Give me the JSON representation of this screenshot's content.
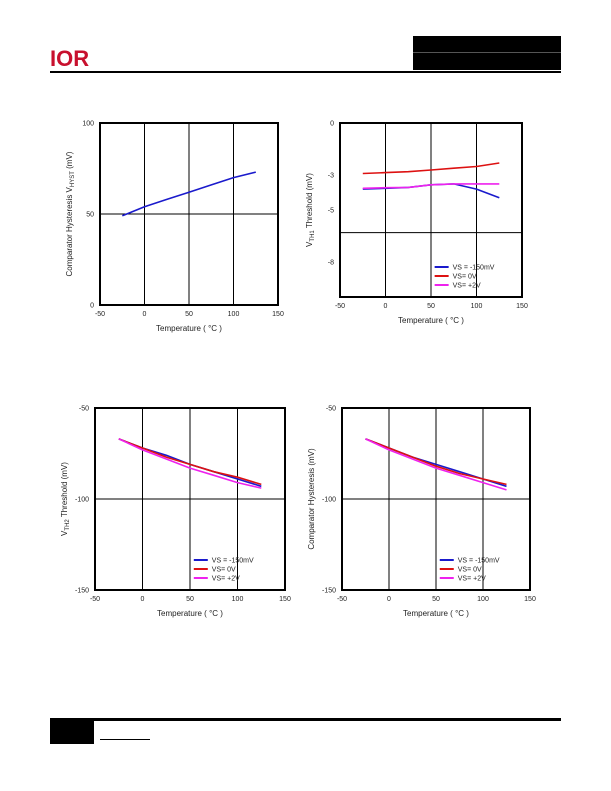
{
  "brand": {
    "logo_text": "IOR",
    "logo_color": "#c8102e"
  },
  "chart_data": [
    {
      "type": "line",
      "xlabel": "Temperature ( °C )",
      "ylabel": "Comparator Hysteresis V",
      "ylabel_sub": "HYST",
      "ylabel_unit": " (mV)",
      "xlim": [
        -50,
        150
      ],
      "ylim": [
        0,
        100
      ],
      "xticks": [
        -50,
        0,
        50,
        100,
        150
      ],
      "yticks": [
        0,
        50,
        100
      ],
      "xgrid": [
        0,
        50,
        100
      ],
      "ygrid": [
        50
      ],
      "legend": null,
      "series": [
        {
          "color": "#1a1acc",
          "x": [
            -25,
            0,
            25,
            50,
            75,
            100,
            125
          ],
          "y": [
            49,
            54,
            58,
            62,
            66,
            70,
            73
          ]
        }
      ]
    },
    {
      "type": "line",
      "xlabel": "Temperature ( °C )",
      "ylabel": "V",
      "ylabel_sub": "TH1",
      "ylabel_unit": " Threshold (mV)",
      "xlim": [
        -50,
        150
      ],
      "ylim": [
        -10,
        0
      ],
      "xticks": [
        -50,
        0,
        50,
        100,
        150
      ],
      "yticks": [
        0,
        -3,
        -5,
        -8
      ],
      "ytick_labels": [
        "0",
        "-3",
        "-5",
        "-8"
      ],
      "xgrid": [
        0,
        50,
        100
      ],
      "ygrid": [
        -6.3
      ],
      "legend": "bottom-right",
      "series": [
        {
          "name": "VS = -150mV",
          "color": "#1a1acc",
          "x": [
            -25,
            0,
            25,
            50,
            75,
            100,
            125
          ],
          "y": [
            -3.8,
            -3.75,
            -3.7,
            -3.55,
            -3.5,
            -3.8,
            -4.3
          ]
        },
        {
          "name": "VS= 0V",
          "color": "#dd1111",
          "x": [
            -25,
            0,
            25,
            50,
            75,
            100,
            125
          ],
          "y": [
            -2.9,
            -2.85,
            -2.8,
            -2.7,
            -2.6,
            -2.5,
            -2.3
          ]
        },
        {
          "name": "VS= +2V",
          "color": "#ee22ee",
          "x": [
            -25,
            0,
            25,
            50,
            75,
            100,
            125
          ],
          "y": [
            -3.75,
            -3.72,
            -3.7,
            -3.55,
            -3.5,
            -3.5,
            -3.5
          ]
        }
      ]
    },
    {
      "type": "line",
      "xlabel": "Temperature ( °C )",
      "ylabel": "V",
      "ylabel_sub": "TH2",
      "ylabel_unit": " Threshold (mV)",
      "xlim": [
        -50,
        150
      ],
      "ylim": [
        -150,
        -50
      ],
      "xticks": [
        -50,
        0,
        50,
        100,
        150
      ],
      "xtick_labels": [
        "-50",
        "0",
        "50",
        "100",
        "150"
      ],
      "yticks": [
        -50,
        -100,
        -150
      ],
      "xgrid": [
        0,
        50,
        100
      ],
      "ygrid": [
        -100
      ],
      "legend": "bottom-right",
      "series": [
        {
          "name": "VS = -150mV",
          "color": "#1a1acc",
          "x": [
            -25,
            0,
            25,
            50,
            75,
            100,
            125
          ],
          "y": [
            -67,
            -72,
            -76,
            -81,
            -85,
            -89,
            -93
          ]
        },
        {
          "name": "VS= 0V",
          "color": "#dd1111",
          "x": [
            -25,
            0,
            25,
            50,
            75,
            100,
            125
          ],
          "y": [
            -67,
            -72,
            -77,
            -81,
            -85,
            -88,
            -92
          ]
        },
        {
          "name": "VS= +2V",
          "color": "#ee22ee",
          "x": [
            -25,
            0,
            25,
            50,
            75,
            100,
            125
          ],
          "y": [
            -67,
            -73,
            -78,
            -83,
            -87,
            -91,
            -94
          ]
        }
      ]
    },
    {
      "type": "line",
      "xlabel": "Temperature ( °C )",
      "ylabel": "Comparator Hysteresis (mV)",
      "ylabel_sub": "",
      "ylabel_unit": "",
      "xlim": [
        -50,
        150
      ],
      "ylim": [
        -150,
        -50
      ],
      "xticks": [
        -50,
        0,
        50,
        100,
        150
      ],
      "yticks": [
        -50,
        -100,
        -150
      ],
      "xgrid": [
        0,
        50,
        100
      ],
      "ygrid": [
        -100
      ],
      "legend": "bottom-right",
      "series": [
        {
          "name": "VS = -150mV",
          "color": "#1a1acc",
          "x": [
            -25,
            0,
            25,
            50,
            75,
            100,
            125
          ],
          "y": [
            -67,
            -72,
            -77,
            -81,
            -85,
            -89,
            -93
          ]
        },
        {
          "name": "VS= 0V",
          "color": "#dd1111",
          "x": [
            -25,
            0,
            25,
            50,
            75,
            100,
            125
          ],
          "y": [
            -67,
            -72,
            -77,
            -82,
            -86,
            -89,
            -92
          ]
        },
        {
          "name": "VS= +2V",
          "color": "#ee22ee",
          "x": [
            -25,
            0,
            25,
            50,
            75,
            100,
            125
          ],
          "y": [
            -67,
            -73,
            -78,
            -83,
            -87,
            -91,
            -95
          ]
        }
      ]
    }
  ]
}
